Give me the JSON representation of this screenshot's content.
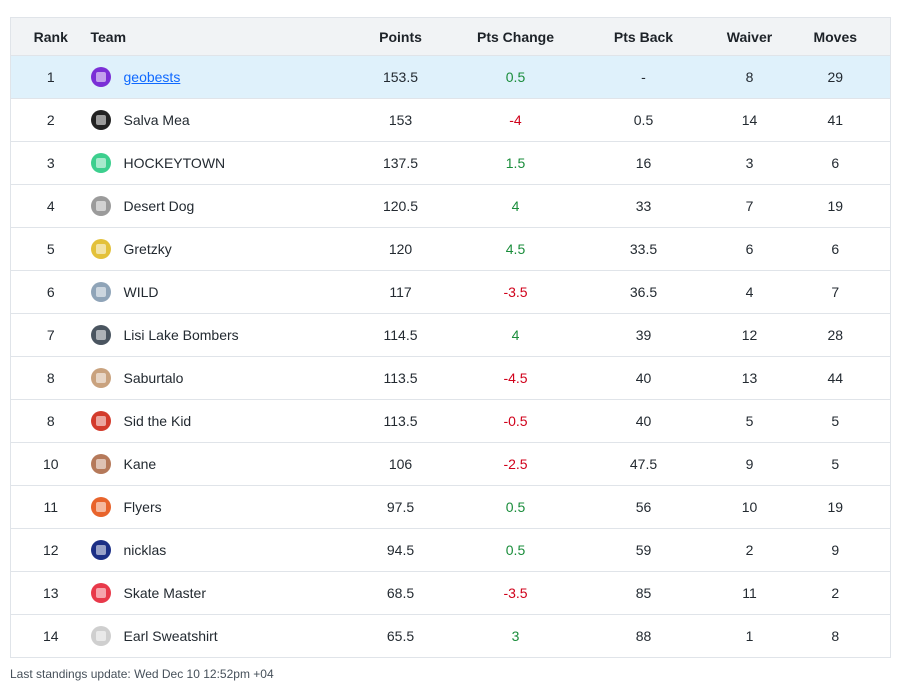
{
  "headers": {
    "rank": "Rank",
    "team": "Team",
    "points": "Points",
    "pts_change": "Pts Change",
    "pts_back": "Pts Back",
    "waiver": "Waiver",
    "moves": "Moves"
  },
  "rows": [
    {
      "rank": "1",
      "team": "geobests",
      "points": "153.5",
      "pts_change": "0.5",
      "pts_back": "-",
      "waiver": "8",
      "moves": "29",
      "trend": "pos",
      "highlight": true,
      "avatar_color": "#7b2fd6",
      "avatar_icon": "jersey-icon"
    },
    {
      "rank": "2",
      "team": "Salva Mea",
      "points": "153",
      "pts_change": "-4",
      "pts_back": "0.5",
      "waiver": "14",
      "moves": "41",
      "trend": "neg",
      "avatar_color": "#222222",
      "avatar_icon": "team-avatar-icon"
    },
    {
      "rank": "3",
      "team": "HOCKEYTOWN",
      "points": "137.5",
      "pts_change": "1.5",
      "pts_back": "16",
      "waiver": "3",
      "moves": "6",
      "trend": "pos",
      "avatar_color": "#3ccf8e",
      "avatar_icon": "jersey-icon"
    },
    {
      "rank": "4",
      "team": "Desert Dog",
      "points": "120.5",
      "pts_change": "4",
      "pts_back": "33",
      "waiver": "7",
      "moves": "19",
      "trend": "pos",
      "avatar_color": "#9b9b9b",
      "avatar_icon": "dog-icon"
    },
    {
      "rank": "5",
      "team": "Gretzky",
      "points": "120",
      "pts_change": "4.5",
      "pts_back": "33.5",
      "waiver": "6",
      "moves": "6",
      "trend": "pos",
      "avatar_color": "#e3c13a",
      "avatar_icon": "jersey-icon"
    },
    {
      "rank": "6",
      "team": "WILD",
      "points": "117",
      "pts_change": "-3.5",
      "pts_back": "36.5",
      "waiver": "4",
      "moves": "7",
      "trend": "neg",
      "avatar_color": "#8fa4b8",
      "avatar_icon": "jersey-icon"
    },
    {
      "rank": "7",
      "team": "Lisi Lake Bombers",
      "points": "114.5",
      "pts_change": "4",
      "pts_back": "39",
      "waiver": "12",
      "moves": "28",
      "trend": "pos",
      "avatar_color": "#4a5560",
      "avatar_icon": "team-avatar-icon"
    },
    {
      "rank": "8",
      "team": "Saburtalo",
      "points": "113.5",
      "pts_change": "-4.5",
      "pts_back": "40",
      "waiver": "13",
      "moves": "44",
      "trend": "neg",
      "avatar_color": "#c9a27e",
      "avatar_icon": "face-icon"
    },
    {
      "rank": "8",
      "team": "Sid the Kid",
      "points": "113.5",
      "pts_change": "-0.5",
      "pts_back": "40",
      "waiver": "5",
      "moves": "5",
      "trend": "neg",
      "avatar_color": "#d33b2c",
      "avatar_icon": "player-icon"
    },
    {
      "rank": "10",
      "team": "Kane",
      "points": "106",
      "pts_change": "-2.5",
      "pts_back": "47.5",
      "waiver": "9",
      "moves": "5",
      "trend": "neg",
      "avatar_color": "#b5795a",
      "avatar_icon": "face-icon"
    },
    {
      "rank": "11",
      "team": "Flyers",
      "points": "97.5",
      "pts_change": "0.5",
      "pts_back": "56",
      "waiver": "10",
      "moves": "19",
      "trend": "pos",
      "avatar_color": "#e8642c",
      "avatar_icon": "logo-icon"
    },
    {
      "rank": "12",
      "team": "nicklas",
      "points": "94.5",
      "pts_change": "0.5",
      "pts_back": "59",
      "waiver": "2",
      "moves": "9",
      "trend": "pos",
      "avatar_color": "#1c2f86",
      "avatar_icon": "logo-icon"
    },
    {
      "rank": "13",
      "team": "Skate Master",
      "points": "68.5",
      "pts_change": "-3.5",
      "pts_back": "85",
      "waiver": "11",
      "moves": "2",
      "trend": "neg",
      "avatar_color": "#e8394a",
      "avatar_icon": "jersey-icon"
    },
    {
      "rank": "14",
      "team": "Earl Sweatshirt",
      "points": "65.5",
      "pts_change": "3",
      "pts_back": "88",
      "waiver": "1",
      "moves": "8",
      "trend": "pos",
      "avatar_color": "#cfcfcf",
      "avatar_icon": "logo-icon"
    }
  ],
  "footer": "Last standings update: Wed Dec 10 12:52pm +04"
}
